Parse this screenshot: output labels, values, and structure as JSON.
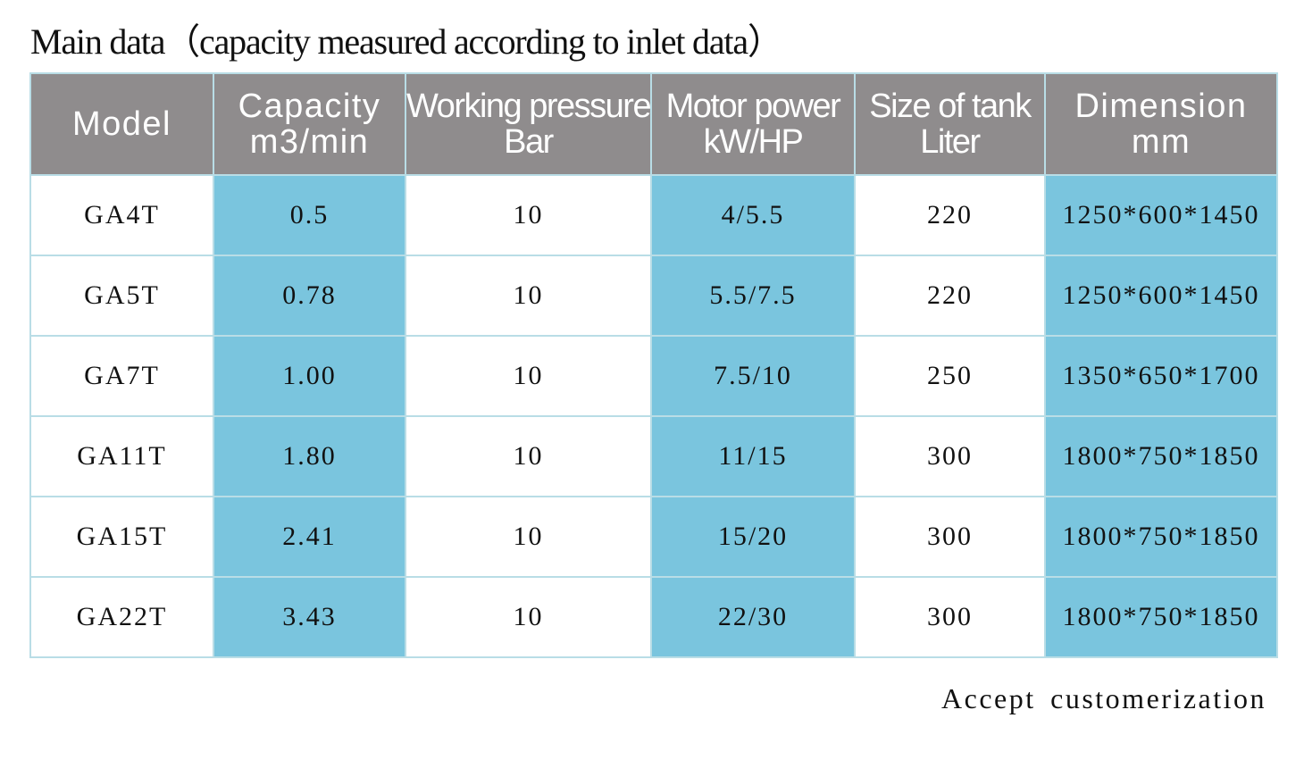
{
  "title": "Main data（capacity measured according to inlet data）",
  "table": {
    "headers": [
      {
        "line1": "Model",
        "line2": ""
      },
      {
        "line1": "Capacity",
        "line2": "m3/min"
      },
      {
        "line1": "Working pressure",
        "line2": "Bar"
      },
      {
        "line1": "Motor  power",
        "line2": "kW/HP"
      },
      {
        "line1": "Size of tank",
        "line2": "Liter"
      },
      {
        "line1": "Dimension",
        "line2": "mm"
      }
    ],
    "rows": [
      {
        "model": "GA4T",
        "capacity": "0.5",
        "pressure": "10",
        "motor": "4/5.5",
        "tank": "220",
        "dimension": "1250*600*1450"
      },
      {
        "model": "GA5T",
        "capacity": "0.78",
        "pressure": "10",
        "motor": "5.5/7.5",
        "tank": "220",
        "dimension": "1250*600*1450"
      },
      {
        "model": "GA7T",
        "capacity": "1.00",
        "pressure": "10",
        "motor": "7.5/10",
        "tank": "250",
        "dimension": "1350*650*1700"
      },
      {
        "model": "GA11T",
        "capacity": "1.80",
        "pressure": "10",
        "motor": "11/15",
        "tank": "300",
        "dimension": "1800*750*1850"
      },
      {
        "model": "GA15T",
        "capacity": "2.41",
        "pressure": "10",
        "motor": "15/20",
        "tank": "300",
        "dimension": "1800*750*1850"
      },
      {
        "model": "GA22T",
        "capacity": "3.43",
        "pressure": "10",
        "motor": "22/30",
        "tank": "300",
        "dimension": "1800*750*1850"
      }
    ]
  },
  "footer": "Accept  customerization",
  "colors": {
    "header_bg": "#8f8c8d",
    "highlight_column": "#7ac5de",
    "grid_line": "#b9dde6"
  }
}
